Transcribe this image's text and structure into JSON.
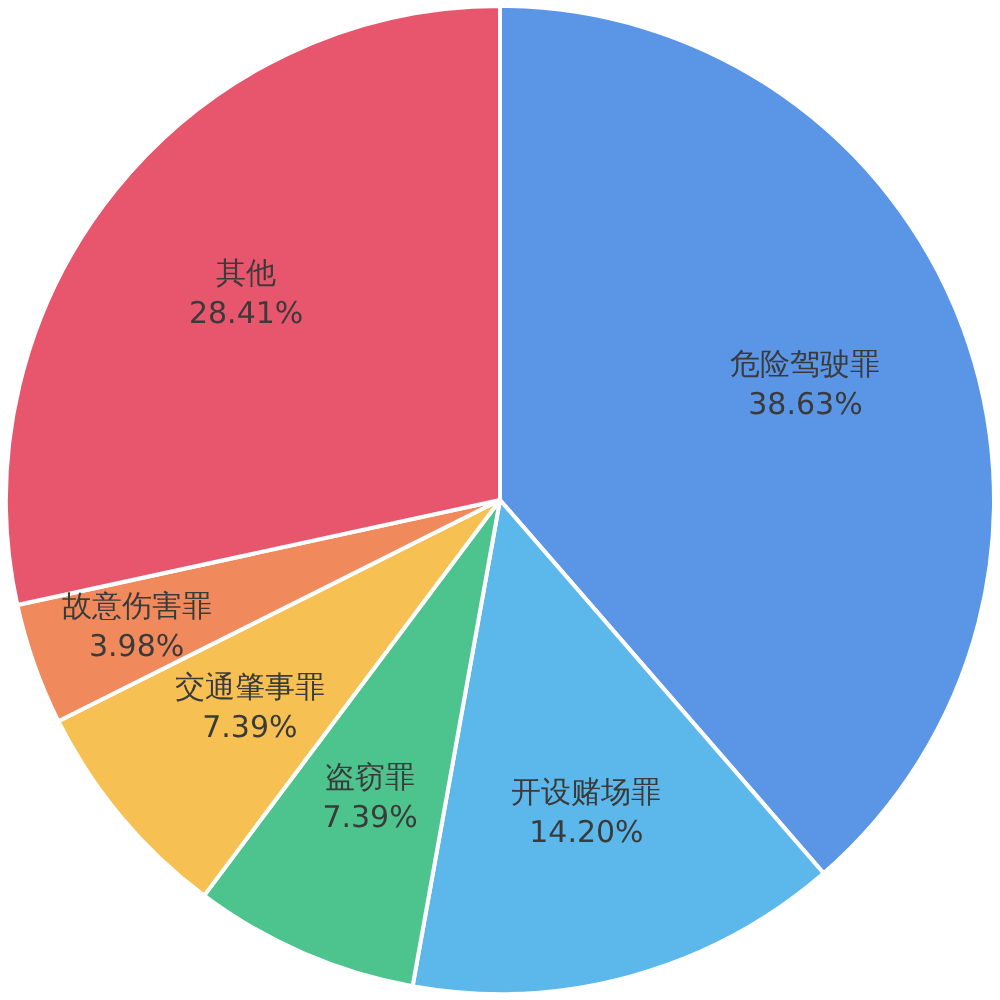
{
  "chart_data": {
    "type": "pie",
    "categories": [
      "危险驾驶罪",
      "开设赌场罪",
      "盗窃罪",
      "交通肇事罪",
      "故意伤害罪",
      "其他"
    ],
    "values": [
      38.63,
      14.2,
      7.39,
      7.39,
      3.98,
      28.41
    ],
    "colors": [
      "#5b96e6",
      "#5cb8ea",
      "#4dc48e",
      "#f7c052",
      "#f08a5c",
      "#e8566e"
    ],
    "value_labels": [
      "38.63%",
      "14.20%",
      "7.39%",
      "7.39%",
      "3.98%",
      "28.41%"
    ],
    "legend": false
  }
}
